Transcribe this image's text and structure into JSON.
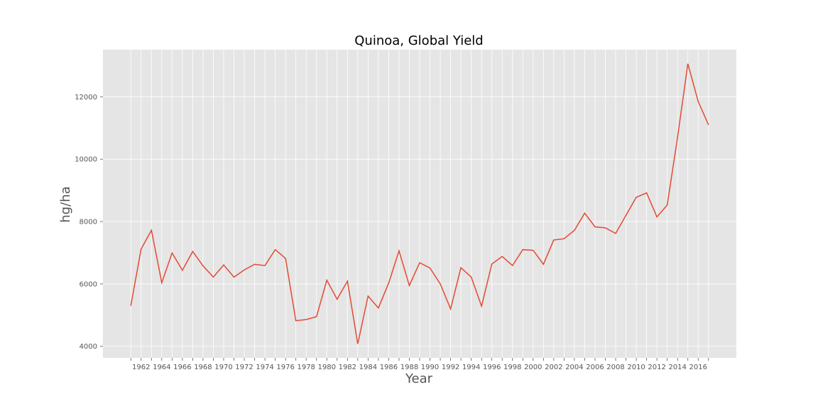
{
  "chart_data": {
    "type": "line",
    "title": "Quinoa, Global Yield",
    "xlabel": "Year",
    "ylabel": "hg/ha",
    "x": [
      1961,
      1962,
      1963,
      1964,
      1965,
      1966,
      1967,
      1968,
      1969,
      1970,
      1971,
      1972,
      1973,
      1974,
      1975,
      1976,
      1977,
      1978,
      1979,
      1980,
      1981,
      1982,
      1983,
      1984,
      1985,
      1986,
      1987,
      1988,
      1989,
      1990,
      1991,
      1992,
      1993,
      1994,
      1995,
      1996,
      1997,
      1998,
      1999,
      2000,
      2001,
      2002,
      2003,
      2004,
      2005,
      2006,
      2007,
      2008,
      2009,
      2010,
      2011,
      2012,
      2013,
      2014,
      2015,
      2016,
      2017
    ],
    "series": [
      {
        "values": [
          5300,
          7120,
          7720,
          6040,
          6990,
          6440,
          7040,
          6580,
          6220,
          6610,
          6220,
          6450,
          6630,
          6590,
          7100,
          6820,
          4820,
          4860,
          4950,
          6120,
          5510,
          6090,
          4080,
          5610,
          5230,
          6030,
          7060,
          5950,
          6680,
          6510,
          6000,
          5200,
          6520,
          6220,
          5290,
          6640,
          6880,
          6590,
          7100,
          7080,
          6630,
          7410,
          7450,
          7720,
          8270,
          7830,
          7800,
          7620,
          8200,
          8780,
          8920,
          8150,
          8530,
          10700,
          13060,
          11850,
          11100
        ],
        "color": "#E24A33"
      }
    ],
    "xticks": [
      "1962",
      "1964",
      "1966",
      "1968",
      "1970",
      "1972",
      "1974",
      "1976",
      "1978",
      "1980",
      "1982",
      "1984",
      "1986",
      "1988",
      "1990",
      "1992",
      "1994",
      "1996",
      "1998",
      "2000",
      "2002",
      "2004",
      "2006",
      "2008",
      "2010",
      "2012",
      "2014",
      "2016"
    ],
    "yticks": [
      "4000",
      "6000",
      "8000",
      "10000",
      "12000"
    ],
    "xlim": [
      1958.3,
      2019.7
    ],
    "ylim": [
      3630,
      13510
    ],
    "grid": true,
    "legend": "none",
    "colors": {
      "plot_background": "#E5E5E5",
      "grid": "#FFFFFF",
      "text": "#555555"
    }
  }
}
